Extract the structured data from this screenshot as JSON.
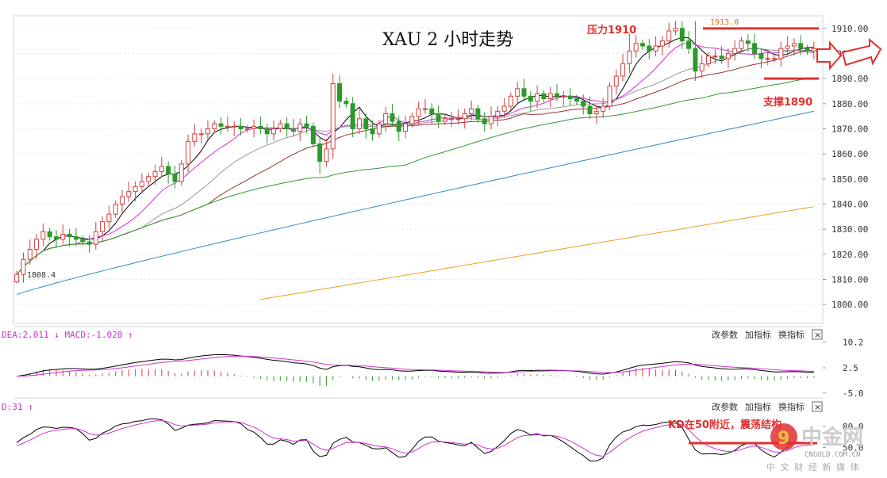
{
  "chart_data": {
    "type": "candlestick",
    "title": "XAU 2 小时走势",
    "instrument": "XAU",
    "ylim": [
      1795,
      1915
    ],
    "y_ticks": [
      "1910.00",
      "1900.00",
      "1890.00",
      "1880.00",
      "1870.00",
      "1860.00",
      "1850.00",
      "1840.00",
      "1830.00",
      "1820.00",
      "1810.00",
      "1800.00"
    ],
    "low_marker": "1808.4",
    "high_marker": "1913.0",
    "close": [
      1812,
      1818,
      1822,
      1826,
      1829,
      1827,
      1826,
      1828,
      1827,
      1826,
      1825,
      1824,
      1829,
      1833,
      1836,
      1840,
      1843,
      1845,
      1847,
      1849,
      1851,
      1853,
      1855,
      1852,
      1849,
      1856,
      1865,
      1868,
      1868,
      1870,
      1872,
      1871,
      1871,
      1871,
      1870,
      1870,
      1871,
      1870,
      1868,
      1870,
      1872,
      1870,
      1869,
      1872,
      1871,
      1864,
      1857,
      1862,
      1888,
      1881,
      1880,
      1870,
      1874,
      1870,
      1868,
      1872,
      1876,
      1873,
      1869,
      1872,
      1875,
      1878,
      1878,
      1876,
      1873,
      1874,
      1874,
      1874,
      1876,
      1878,
      1874,
      1872,
      1875,
      1877,
      1879,
      1883,
      1886,
      1883,
      1881,
      1884,
      1882,
      1884,
      1883,
      1883,
      1882,
      1881,
      1879,
      1876,
      1877,
      1879,
      1887,
      1891,
      1896,
      1901,
      1904,
      1903,
      1901,
      1903,
      1905,
      1909,
      1910,
      1905,
      1902,
      1893,
      1896,
      1899,
      1899,
      1898,
      1900,
      1902,
      1905,
      1904,
      1900,
      1898,
      1898,
      1898,
      1902,
      1903,
      1904,
      1902,
      1901,
      1902
    ],
    "ma_colors": {
      "ma5": "#000000",
      "ma10": "#cc33cc",
      "ma20": "#999999",
      "ma30": "#993333",
      "ma60": "#339933",
      "ma120": "#3388cc",
      "ma250": "#f0a020"
    },
    "support_level": 1890,
    "resistance_level": 1910,
    "macd": {
      "header": "DEA:2.011 ↓ MACD:-1.028 ↑",
      "y_ticks": [
        "10.2",
        "2.5",
        "-5.0"
      ],
      "ylim": [
        -6,
        11
      ]
    },
    "kdj": {
      "header": "D:31 ↑",
      "y_ticks": [
        "80.0",
        "50.0"
      ],
      "ylim": [
        10,
        100
      ]
    }
  },
  "annotations": {
    "resistance": "压力1910",
    "support": "支撑1890",
    "kd_note": "KD在50附近，震荡结构"
  },
  "toolbar": {
    "edit_params": "改参数",
    "add_indicator": "加指标",
    "switch_indicator": "换指标",
    "close": "×"
  },
  "watermark": {
    "name": "中金网",
    "domain": "CNGOLD.COM.CN",
    "slogan": "中 文 财 经 新 媒 体"
  },
  "colors": {
    "up": "#d04040",
    "down": "#2a9a2a",
    "annotation": "#e03030"
  }
}
